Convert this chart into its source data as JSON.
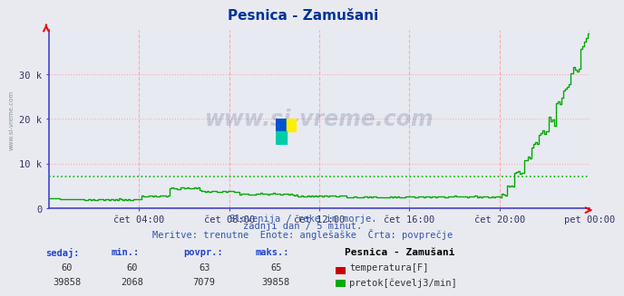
{
  "title": "Pesnica - Zamušani",
  "bg_color": "#e8eaf0",
  "plot_bg_color": "#e8eaf2",
  "grid_color": "#ffaaaa",
  "avg_line_value": 7079,
  "avg_line_color": "#00bb00",
  "temp_color": "#cc0000",
  "flow_color": "#00aa00",
  "axis_color": "#4444cc",
  "x_ticks_labels": [
    "čet 04:00",
    "čet 08:00",
    "čet 12:00",
    "čet 16:00",
    "čet 20:00",
    "pet 00:00"
  ],
  "x_ticks_norm": [
    0.1667,
    0.3333,
    0.5,
    0.6667,
    0.8333,
    1.0
  ],
  "ylim": [
    0,
    40000
  ],
  "yticks": [
    0,
    10000,
    20000,
    30000
  ],
  "ytick_labels": [
    "0",
    "10 k",
    "20 k",
    "30 k"
  ],
  "subtitle1": "Slovenija / reke in morje.",
  "subtitle2": "zadnji dan / 5 minut.",
  "subtitle3": "Meritve: trenutne  Enote: anglešaške  Črta: povprečje",
  "footer_label_color": "#2244cc",
  "footer_headers": [
    "sedaj:",
    "min.:",
    "povpr.:",
    "maks.:"
  ],
  "footer_temp_values": [
    "60",
    "60",
    "63",
    "65"
  ],
  "footer_flow_values": [
    "39858",
    "2068",
    "7079",
    "39858"
  ],
  "footer_station": "Pesnica - Zamušani",
  "footer_temp_label": "temperatura[F]",
  "footer_flow_label": "pretok[čevelj3/min]",
  "n_points": 288
}
